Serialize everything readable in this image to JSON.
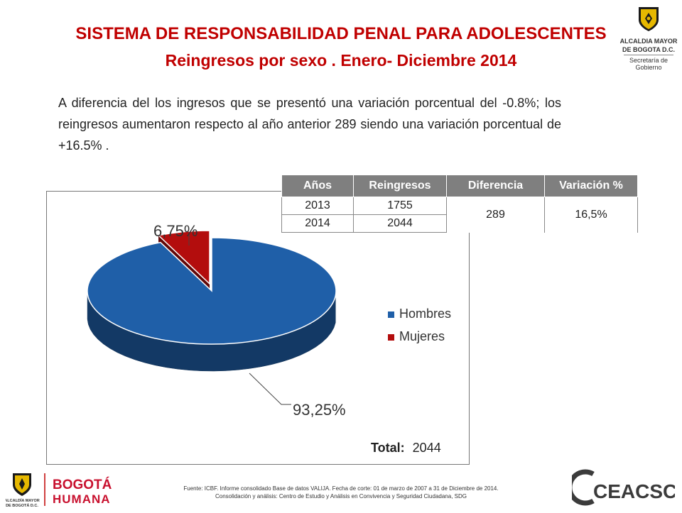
{
  "header": {
    "title": "SISTEMA DE RESPONSABILIDAD PENAL PARA ADOLESCENTES",
    "subtitle": "Reingresos por sexo . Enero- Diciembre 2014"
  },
  "logo_top": {
    "line1": "ALCALDIA MAYOR",
    "line2": "DE BOGOTA D.C.",
    "line3": "Secretaría de Gobierno"
  },
  "intro": "A diferencia del los ingresos que se presentó  una variación porcentual del -0.8%;  los reingresos  aumentaron respecto al año anterior 289 siendo una variación porcentual de +16.5% .",
  "table": {
    "headers": [
      "Años",
      "Reingresos",
      "Diferencia",
      "Variación %"
    ],
    "rows": [
      {
        "year": "2013",
        "value": "1755"
      },
      {
        "year": "2014",
        "value": "2044"
      }
    ],
    "difference": "289",
    "variation": "16,5%"
  },
  "chart_data": {
    "type": "pie",
    "title": "",
    "slices": [
      {
        "label": "Hombres",
        "value": 93.25,
        "display": "93,25%",
        "color": "#1f5fa8"
      },
      {
        "label": "Mujeres",
        "value": 6.75,
        "display": "6,75%",
        "color": "#b30d0d"
      }
    ],
    "legend": [
      "Hombres",
      "Mujeres"
    ],
    "legend_position": "right",
    "total_label": "Total:",
    "total_value": "2044"
  },
  "footer": {
    "source": "Fuente: ICBF. Informe consolidado Base de datos VALIJA. Fecha de corte: 01 de marzo de 2007 a  31 de Diciembre de 2014.",
    "analysis": "Consolidación y análisis: Centro de Estudio y Análisis en Convivencia y Seguridad Ciudadana, SDG",
    "left_logo_1": "BOGOTÁ",
    "left_logo_2": "HUMANA",
    "left_logo_small1": "ALCALDÍA MAYOR",
    "left_logo_small2": "DE BOGOTÁ D.C.",
    "right_logo": "CEACSC"
  }
}
